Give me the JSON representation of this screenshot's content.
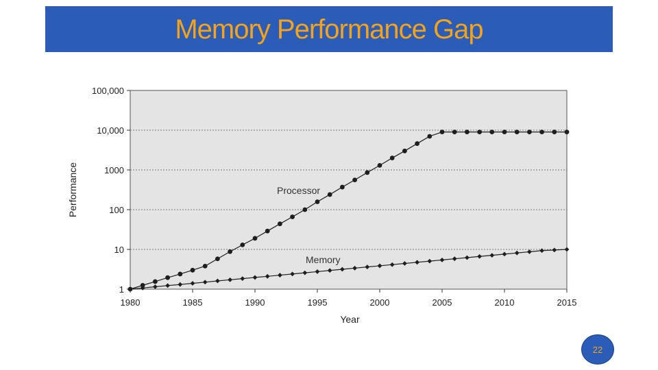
{
  "slide": {
    "title": "Memory Performance Gap",
    "page_number": "22"
  },
  "colors": {
    "title_bar": "#2a5cb8",
    "title_text": "#f5a31a",
    "plot_bg": "#e4e4e4",
    "series": "#1e1e1e",
    "badge_bg": "#2a5cb8",
    "badge_border": "#1a3f88",
    "badge_text": "#f5a31a"
  },
  "chart_data": {
    "type": "line",
    "yscale": "log",
    "title": "",
    "xlabel": "Year",
    "ylabel": "Performance",
    "xlim": [
      1980,
      2015
    ],
    "ylim": [
      1,
      100000
    ],
    "x_ticks": [
      1980,
      1985,
      1990,
      1995,
      2000,
      2005,
      2010,
      2015
    ],
    "x_tick_labels": [
      "1980",
      "1985",
      "1990",
      "1995",
      "2000",
      "2005",
      "2010",
      "2015"
    ],
    "y_ticks": [
      1,
      10,
      100,
      1000,
      10000,
      100000
    ],
    "y_tick_labels": [
      "1",
      "10",
      "100",
      "1000",
      "10,000",
      "100,000"
    ],
    "grid": "horizontal dashed",
    "series": [
      {
        "name": "Processor",
        "x": [
          1980,
          1981,
          1982,
          1983,
          1984,
          1985,
          1986,
          1987,
          1988,
          1989,
          1990,
          1991,
          1992,
          1993,
          1994,
          1995,
          1996,
          1997,
          1998,
          1999,
          2000,
          2001,
          2002,
          2003,
          2004,
          2005,
          2006,
          2007,
          2008,
          2009,
          2010,
          2011,
          2012,
          2013,
          2014,
          2015
        ],
        "values": [
          1,
          1.25,
          1.55,
          1.95,
          2.4,
          3,
          3.8,
          5.8,
          8.8,
          13,
          19,
          29,
          44,
          66,
          100,
          158,
          240,
          370,
          560,
          860,
          1300,
          2000,
          3000,
          4600,
          7000,
          9000,
          9000,
          9000,
          9000,
          9000,
          9000,
          9000,
          9000,
          9000,
          9000,
          9000
        ]
      },
      {
        "name": "Memory",
        "x": [
          1980,
          1981,
          1982,
          1983,
          1984,
          1985,
          1986,
          1987,
          1988,
          1989,
          1990,
          1991,
          1992,
          1993,
          1994,
          1995,
          1996,
          1997,
          1998,
          1999,
          2000,
          2001,
          2002,
          2003,
          2004,
          2005,
          2006,
          2007,
          2008,
          2009,
          2010,
          2011,
          2012,
          2013,
          2014,
          2015
        ],
        "values": [
          1,
          1.07,
          1.15,
          1.23,
          1.31,
          1.4,
          1.5,
          1.61,
          1.72,
          1.84,
          1.97,
          2.1,
          2.25,
          2.41,
          2.58,
          2.76,
          2.95,
          3.16,
          3.38,
          3.62,
          3.87,
          4.14,
          4.43,
          4.74,
          5.07,
          5.43,
          5.81,
          6.21,
          6.65,
          7.11,
          7.61,
          8.14,
          8.71,
          9.32,
          9.66,
          10
        ]
      }
    ]
  }
}
